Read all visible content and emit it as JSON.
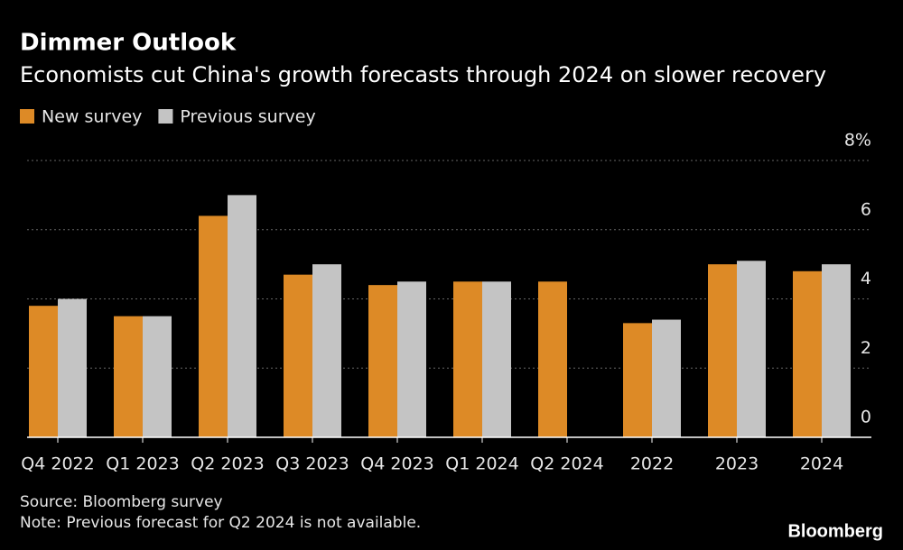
{
  "chart_data": {
    "type": "bar",
    "title": "Dimmer Outlook",
    "subtitle": "Economists cut China's growth forecasts through 2024 on slower recovery",
    "categories": [
      "Q4 2022",
      "Q1 2023",
      "Q2 2023",
      "Q3 2023",
      "Q4 2023",
      "Q1 2024",
      "Q2 2024",
      "2022",
      "2023",
      "2024"
    ],
    "series": [
      {
        "name": "New survey",
        "color": "#dd8a26",
        "values": [
          3.8,
          3.5,
          6.4,
          4.7,
          4.4,
          4.5,
          4.5,
          3.3,
          5.0,
          4.8
        ]
      },
      {
        "name": "Previous survey",
        "color": "#c4c4c4",
        "values": [
          4.0,
          3.5,
          7.0,
          5.0,
          4.5,
          4.5,
          null,
          3.4,
          5.1,
          5.0
        ]
      }
    ],
    "ylim": [
      0,
      8
    ],
    "yticks": [
      0,
      2,
      4,
      6,
      {
        "value": 8,
        "label": "8%"
      }
    ],
    "grid": true,
    "source": "Source: Bloomberg survey",
    "note": "Note: Previous forecast for Q2 2024 is not available.",
    "logo": "Bloomberg"
  }
}
